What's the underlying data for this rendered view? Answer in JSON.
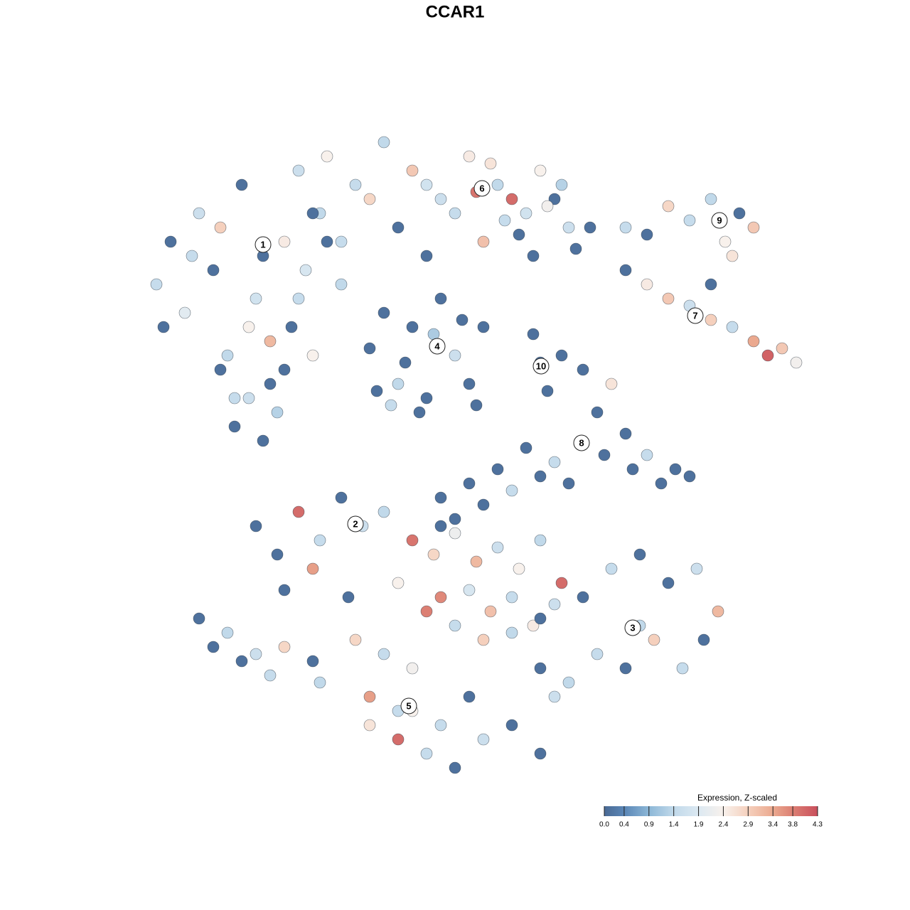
{
  "chart_data": {
    "type": "scatter",
    "title": "CCAR1",
    "legend_title": "Expression, Z-scaled",
    "xlim": [
      -45,
      50
    ],
    "ylim": [
      -46,
      46
    ],
    "x": [
      -42,
      -40,
      -38,
      -36,
      -34,
      -32,
      -30,
      -28,
      -26,
      -24,
      -41,
      -37,
      -33,
      -31,
      -29,
      -27,
      -25,
      -23,
      -21,
      -19,
      -33,
      -31,
      -29,
      -27,
      -26,
      -24,
      -22,
      -20,
      -18,
      -16,
      -22,
      -18,
      -14,
      -10,
      -6,
      -2,
      2,
      6,
      10,
      14,
      -20,
      -16,
      -12,
      -8,
      -4,
      0,
      4,
      8,
      12,
      16,
      3,
      5,
      7,
      9,
      11,
      13,
      15,
      17,
      19,
      -4,
      -12,
      -10,
      -8,
      -6,
      -4,
      -2,
      0,
      2,
      4,
      -7,
      -11,
      -9,
      -5,
      -3,
      1,
      3,
      11,
      12,
      13,
      15,
      24,
      27,
      30,
      33,
      36,
      38,
      40,
      42,
      36,
      39,
      24,
      27,
      30,
      33,
      36,
      39,
      42,
      44,
      46,
      48,
      18,
      20,
      22,
      24,
      25,
      27,
      29,
      31,
      33,
      21,
      10,
      14,
      6,
      2,
      -2,
      8,
      12,
      16,
      4,
      0,
      -28,
      -25,
      -22,
      -19,
      -16,
      -13,
      -10,
      -24,
      -20,
      -15,
      -6,
      -3,
      0,
      3,
      6,
      9,
      12,
      15,
      -2,
      2,
      5,
      8,
      11,
      14,
      -8,
      -4,
      0,
      4,
      8,
      12,
      18,
      22,
      26,
      30,
      34,
      37,
      20,
      24,
      28,
      32,
      16,
      26,
      35,
      12,
      14,
      -10,
      -6,
      -14,
      -12,
      -8,
      -12,
      -8,
      -4,
      0,
      4,
      8,
      12,
      -6,
      -2,
      2,
      -34,
      -32,
      -30,
      -28,
      -26,
      -24,
      -20,
      -36,
      -19,
      -2
    ],
    "y": [
      24,
      30,
      20,
      34,
      26,
      14,
      38,
      22,
      10,
      30,
      18,
      28,
      32,
      8,
      18,
      28,
      6,
      18,
      26,
      34,
      12,
      4,
      8,
      2,
      16,
      12,
      22,
      14,
      30,
      24,
      40,
      42,
      38,
      44,
      40,
      36,
      42,
      38,
      34,
      36,
      34,
      30,
      36,
      32,
      38,
      34,
      30,
      36,
      40,
      32,
      37,
      41,
      33,
      31,
      28,
      35,
      38,
      29,
      32,
      28,
      15,
      20,
      10,
      18,
      8,
      22,
      14,
      10,
      18,
      13,
      9,
      7,
      6,
      17,
      19,
      7,
      17,
      13,
      9,
      14,
      32,
      31,
      35,
      33,
      36,
      30,
      34,
      32,
      24,
      28,
      26,
      24,
      22,
      21,
      19,
      18,
      16,
      14,
      15,
      13,
      12,
      6,
      10,
      3,
      -2,
      0,
      -4,
      -2,
      -3,
      0,
      1,
      -1,
      -2,
      -4,
      -6,
      -5,
      -3,
      -4,
      -7,
      -9,
      -10,
      -14,
      -8,
      -12,
      -6,
      -10,
      -8,
      -19,
      -16,
      -20,
      -12,
      -14,
      -11,
      -15,
      -13,
      -16,
      -12,
      -18,
      -20,
      -19,
      -22,
      -20,
      -24,
      -21,
      -18,
      -22,
      -24,
      -26,
      -25,
      -23,
      -20,
      -16,
      -24,
      -18,
      -16,
      -22,
      -28,
      -30,
      -26,
      -30,
      -32,
      -14,
      -26,
      -30,
      -34,
      -28,
      -30,
      -26,
      -34,
      -36,
      -38,
      -40,
      -42,
      -44,
      -40,
      -38,
      -42,
      -36,
      -38,
      -34,
      -27,
      -25,
      -29,
      -28,
      -31,
      -27,
      -29,
      -23,
      -32,
      -10
    ],
    "values": [
      1.5,
      0.1,
      2.0,
      1.6,
      0.1,
      1.4,
      0.1,
      1.7,
      0.1,
      2.5,
      0.1,
      1.5,
      2.9,
      1.5,
      2.4,
      0.1,
      1.3,
      0.1,
      1.8,
      1.4,
      0.1,
      0.1,
      1.6,
      0.1,
      3.2,
      0.1,
      1.5,
      2.4,
      0.1,
      1.4,
      1.6,
      2.4,
      1.5,
      1.4,
      3.0,
      1.6,
      2.5,
      1.4,
      1.7,
      0.1,
      0.1,
      1.5,
      2.8,
      0.1,
      1.7,
      1.5,
      3.1,
      4.0,
      2.4,
      1.6,
      3.9,
      2.6,
      1.5,
      0.1,
      0.1,
      2.3,
      1.3,
      0.1,
      0.1,
      0.1,
      0.1,
      0.1,
      1.4,
      0.1,
      0.1,
      0.1,
      1.6,
      0.1,
      0.1,
      0.1,
      0.1,
      1.5,
      0.1,
      1.2,
      0.1,
      0.1,
      0.1,
      0.1,
      0.1,
      0.1,
      1.5,
      0.1,
      2.8,
      1.5,
      1.4,
      2.4,
      0.1,
      3.0,
      0.1,
      2.6,
      0.1,
      2.5,
      3.0,
      1.6,
      2.9,
      1.5,
      3.4,
      4.1,
      3.0,
      2.3,
      0.1,
      0.1,
      2.6,
      0.1,
      0.1,
      1.5,
      0.1,
      0.1,
      0.1,
      0.1,
      0.1,
      1.5,
      0.1,
      0.1,
      0.1,
      1.5,
      0.1,
      0.1,
      0.1,
      0.1,
      0.1,
      0.1,
      4.0,
      1.5,
      0.1,
      1.6,
      1.4,
      0.1,
      3.5,
      0.1,
      3.9,
      2.8,
      2.2,
      3.2,
      1.6,
      2.4,
      1.4,
      4.0,
      3.7,
      1.8,
      3.1,
      1.5,
      2.5,
      1.6,
      2.4,
      3.8,
      1.5,
      2.9,
      1.4,
      0.1,
      0.1,
      1.5,
      1.4,
      0.1,
      1.6,
      3.2,
      1.5,
      0.1,
      2.9,
      1.5,
      1.4,
      0.1,
      0.1,
      0.1,
      1.6,
      1.5,
      2.3,
      2.8,
      3.5,
      1.5,
      2.6,
      4.0,
      1.5,
      0.1,
      1.6,
      0.1,
      0.1,
      2.4,
      1.5,
      0.1,
      0.1,
      1.4,
      0.1,
      1.6,
      1.5,
      2.8,
      0.1,
      0.1,
      1.4,
      0.1
    ],
    "clusters": [
      {
        "label": "1",
        "x": -27,
        "y": 29.6
      },
      {
        "label": "2",
        "x": -14,
        "y": -9.7
      },
      {
        "label": "3",
        "x": 25,
        "y": -24.3
      },
      {
        "label": "4",
        "x": -2.5,
        "y": 15.3
      },
      {
        "label": "5",
        "x": -6.5,
        "y": -35.3
      },
      {
        "label": "6",
        "x": 3.8,
        "y": 37.5
      },
      {
        "label": "7",
        "x": 33.8,
        "y": 19.6
      },
      {
        "label": "8",
        "x": 17.8,
        "y": 1.7
      },
      {
        "label": "9",
        "x": 37.2,
        "y": 33
      },
      {
        "label": "10",
        "x": 12.1,
        "y": 12.5
      }
    ],
    "clim": [
      0,
      4.3
    ],
    "cticks": [
      {
        "value": 0,
        "label": "0.0"
      },
      0.4,
      0.9,
      1.4,
      1.9,
      2.4,
      2.9,
      3.4,
      3.8,
      4.3
    ],
    "colors": [
      "#4a6a94",
      "#5a86b6",
      "#8cb7d7",
      "#c1d9ea",
      "#dce9f2",
      "#f8f1ec",
      "#f5d0bd",
      "#eba98f",
      "#dc7f73",
      "#c94f5c"
    ]
  }
}
